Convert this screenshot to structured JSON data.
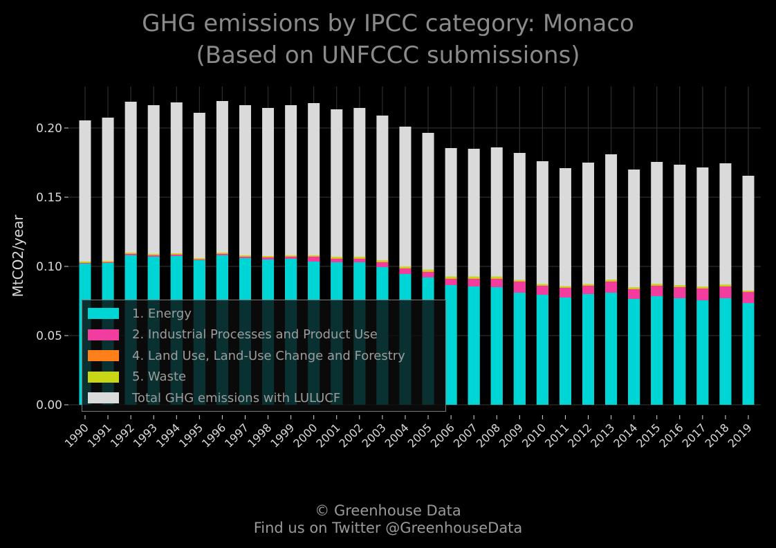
{
  "title_line1": "GHG emissions by IPCC category: Monaco",
  "title_line2": "(Based on UNFCCC submissions)",
  "footer_line1": "© Greenhouse Data",
  "footer_line2": "Find us on Twitter @GreenhouseData",
  "colors": {
    "background": "#000000",
    "grid": "#2e2e2e",
    "energy": "#00d5d5",
    "ippu": "#f23d9f",
    "lulucf": "#ff7f1a",
    "waste": "#c8d616",
    "total": "#dadada"
  },
  "legend": [
    {
      "label": "1. Energy",
      "color": "#00d5d5"
    },
    {
      "label": "2. Industrial Processes and Product Use",
      "color": "#f23d9f"
    },
    {
      "label": "4. Land Use, Land-Use Change and Forestry",
      "color": "#ff7f1a"
    },
    {
      "label": "5. Waste",
      "color": "#c8d616"
    },
    {
      "label": "Total GHG emissions with LULUCF",
      "color": "#dadada"
    }
  ],
  "chart_data": {
    "type": "bar",
    "title": "GHG emissions by IPCC category: Monaco (Based on UNFCCC submissions)",
    "xlabel": "",
    "ylabel": "MtCO2/year",
    "ylim": [
      0,
      0.23
    ],
    "yticks": [
      "0.00",
      "0.05",
      "0.10",
      "0.15",
      "0.20"
    ],
    "grid": true,
    "legend_position": "lower-left",
    "categories": [
      "1990",
      "1991",
      "1992",
      "1993",
      "1994",
      "1995",
      "1996",
      "1997",
      "1998",
      "1999",
      "2000",
      "2001",
      "2002",
      "2003",
      "2004",
      "2005",
      "2006",
      "2007",
      "2008",
      "2009",
      "2010",
      "2011",
      "2012",
      "2013",
      "2014",
      "2015",
      "2016",
      "2017",
      "2018",
      "2019"
    ],
    "series": [
      {
        "name": "1. Energy",
        "values": [
          0.102,
          0.1025,
          0.108,
          0.107,
          0.1075,
          0.1045,
          0.108,
          0.106,
          0.105,
          0.1055,
          0.1035,
          0.103,
          0.103,
          0.0995,
          0.0945,
          0.092,
          0.0865,
          0.0855,
          0.085,
          0.081,
          0.0795,
          0.0775,
          0.08,
          0.081,
          0.0765,
          0.0785,
          0.077,
          0.0755,
          0.077,
          0.0735
        ]
      },
      {
        "name": "2. Industrial Processes and Product Use",
        "values": [
          0.0005,
          0.0005,
          0.001,
          0.001,
          0.001,
          0.0005,
          0.001,
          0.001,
          0.0015,
          0.0015,
          0.0035,
          0.0025,
          0.0025,
          0.0035,
          0.004,
          0.004,
          0.0045,
          0.0055,
          0.006,
          0.008,
          0.0065,
          0.007,
          0.006,
          0.008,
          0.007,
          0.0075,
          0.008,
          0.0085,
          0.0085,
          0.008
        ]
      },
      {
        "name": "4. Land Use, Land-Use Change and Forestry",
        "values": [
          0.0002,
          0.0002,
          0.0002,
          0.0002,
          0.0002,
          0.0002,
          0.0002,
          0.0002,
          0.0002,
          0.0002,
          0.0002,
          0.0002,
          0.0002,
          0.0002,
          0.0002,
          0.0002,
          0.0002,
          0.0002,
          0.0002,
          0.0002,
          0.0002,
          0.0002,
          0.0002,
          0.0002,
          0.0002,
          0.0002,
          0.0002,
          0.0002,
          0.0002,
          0.0002
        ]
      },
      {
        "name": "5. Waste",
        "values": [
          0.0008,
          0.0008,
          0.0008,
          0.0008,
          0.0008,
          0.0008,
          0.0008,
          0.0008,
          0.0008,
          0.0008,
          0.0008,
          0.0012,
          0.0012,
          0.0012,
          0.0012,
          0.0015,
          0.0015,
          0.0015,
          0.0015,
          0.001,
          0.001,
          0.001,
          0.001,
          0.0012,
          0.0012,
          0.0012,
          0.0012,
          0.0012,
          0.0012,
          0.0008
        ]
      },
      {
        "name": "Total GHG emissions with LULUCF",
        "values": [
          0.2055,
          0.2075,
          0.219,
          0.2165,
          0.2185,
          0.211,
          0.2195,
          0.2165,
          0.2145,
          0.2165,
          0.218,
          0.2135,
          0.2145,
          0.209,
          0.201,
          0.1965,
          0.1855,
          0.185,
          0.186,
          0.182,
          0.176,
          0.171,
          0.175,
          0.181,
          0.17,
          0.1755,
          0.1735,
          0.1715,
          0.1745,
          0.1655
        ]
      }
    ]
  }
}
